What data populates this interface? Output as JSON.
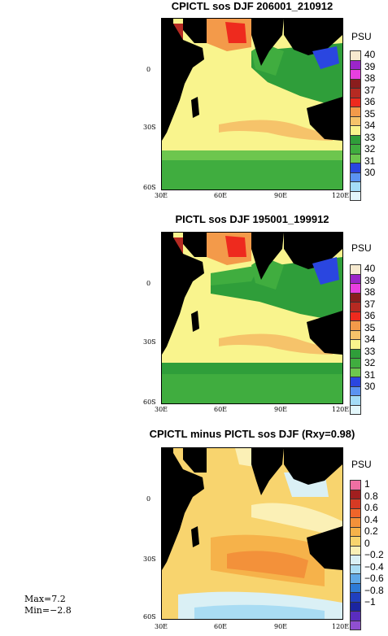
{
  "panels": [
    {
      "title": "CPICTL sos DJF 206001_210912",
      "units": "PSU",
      "lat_ticks": [
        "0",
        "30S",
        "60S"
      ],
      "lon_ticks": [
        "30E",
        "60E",
        "90E",
        "120E"
      ],
      "colorbar_labels": [
        "40",
        "39",
        "38",
        "37",
        "36",
        "35",
        "34",
        "33",
        "32",
        "31",
        "30"
      ],
      "colorbar_colors": [
        "#f6e9cf",
        "#9b25c8",
        "#e83fe0",
        "#8a1d1d",
        "#b52a22",
        "#ee2a1e",
        "#f39a4a",
        "#f6c36a",
        "#f9f48d",
        "#2f9e3a",
        "#40ad3f",
        "#6dc64e",
        "#2a46e0",
        "#5b93f2",
        "#a4dcf7",
        "#e3f7fb"
      ]
    },
    {
      "title": "PICTL sos DJF 195001_199912",
      "units": "PSU",
      "lat_ticks": [
        "0",
        "30S",
        "60S"
      ],
      "lon_ticks": [
        "30E",
        "60E",
        "90E",
        "120E"
      ],
      "colorbar_labels": [
        "40",
        "39",
        "38",
        "37",
        "36",
        "35",
        "34",
        "33",
        "32",
        "31",
        "30"
      ],
      "colorbar_colors": [
        "#f6e9cf",
        "#9b25c8",
        "#e83fe0",
        "#8a1d1d",
        "#b52a22",
        "#ee2a1e",
        "#f39a4a",
        "#f6c36a",
        "#f9f48d",
        "#2f9e3a",
        "#40ad3f",
        "#6dc64e",
        "#2a46e0",
        "#5b93f2",
        "#a4dcf7",
        "#e3f7fb"
      ]
    },
    {
      "title": "CPICTL minus PICTL sos DJF (Rxy=0.98)",
      "units": "PSU",
      "lat_ticks": [
        "0",
        "30S",
        "60S"
      ],
      "lon_ticks": [
        "30E",
        "60E",
        "90E",
        "120E"
      ],
      "colorbar_labels": [
        "1",
        "0.8",
        "0.6",
        "0.4",
        "0.2",
        "0",
        "−0.2",
        "−0.4",
        "−0.6",
        "−0.8",
        "−1"
      ],
      "colorbar_colors": [
        "#ef6fa3",
        "#a11f1f",
        "#d63a24",
        "#f0652a",
        "#f3913a",
        "#f6b24a",
        "#f8d46e",
        "#fbf0b6",
        "#daf0f5",
        "#a9dcf3",
        "#5fa8e7",
        "#2d7ad6",
        "#2040bf",
        "#1b25a0",
        "#5a2dbf",
        "#8f4fd0"
      ]
    }
  ],
  "stats": {
    "max": "Max=7.2",
    "min": "Min=−2.8"
  }
}
